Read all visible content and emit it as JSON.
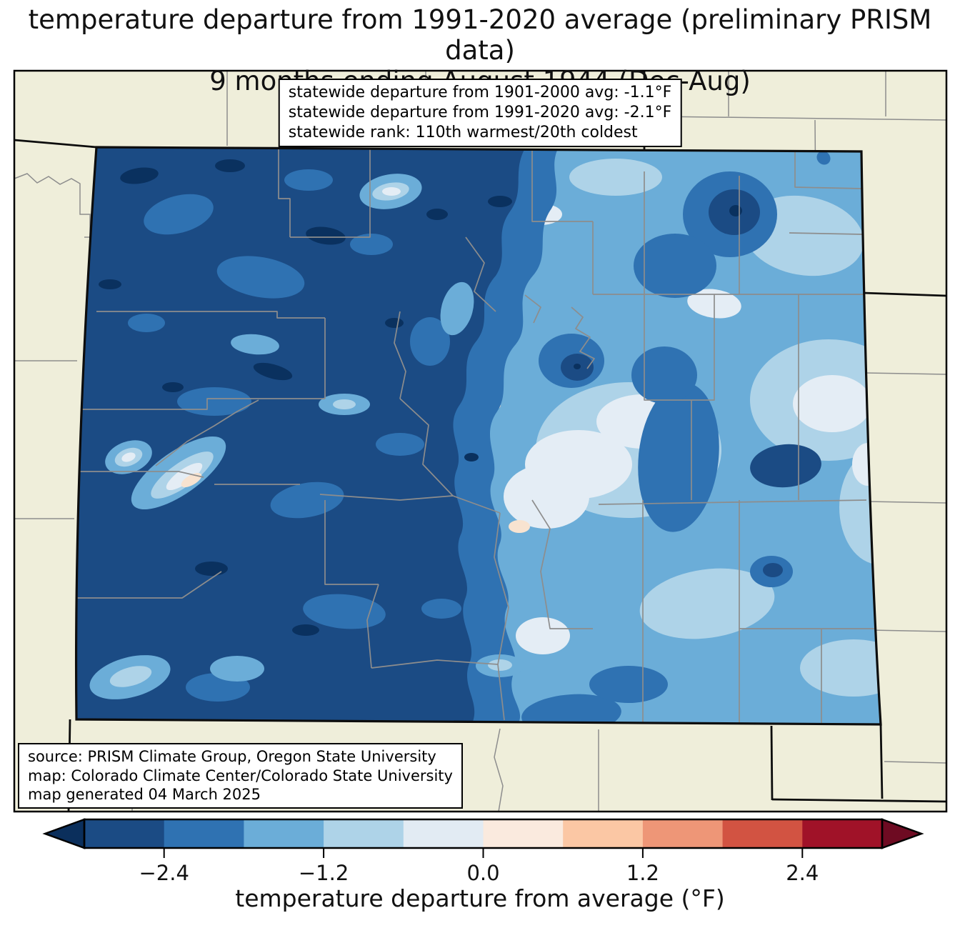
{
  "title": {
    "line1": "temperature departure from 1991-2020 average (preliminary PRISM data)",
    "line2": "9 months ending August 1944 (Dec-Aug)"
  },
  "stats_box": {
    "lines": [
      "statewide departure from 1901-2000 avg: -1.1°F",
      "statewide departure from 1991-2020 avg: -2.1°F",
      "statewide rank: 110th warmest/20th coldest"
    ]
  },
  "source_box": {
    "lines": [
      "source: PRISM Climate Group, Oregon State University",
      "map: Colorado Climate Center/Colorado State University",
      "map generated 04 March 2025"
    ]
  },
  "colorbar": {
    "label": "temperature departure from average (°F)",
    "range": {
      "min": -3.0,
      "max": 3.0
    },
    "ticks": [
      {
        "value": -2.4,
        "label": "−2.4"
      },
      {
        "value": -1.2,
        "label": "−1.2"
      },
      {
        "value": 0.0,
        "label": "0.0"
      },
      {
        "value": 1.2,
        "label": "1.2"
      },
      {
        "value": 2.4,
        "label": "2.4"
      }
    ],
    "segments": [
      "#1b4b84",
      "#2f72b2",
      "#6badd8",
      "#aed3e8",
      "#e2ebf3",
      "#faeade",
      "#fbc7a4",
      "#ee9677",
      "#d25342",
      "#a01228"
    ],
    "under_color": "#0b2f5c",
    "over_color": "#6e0b22"
  },
  "map": {
    "region": "Colorado",
    "palette": {
      "under": "#0a315f",
      "bin1": "#1b4b84",
      "bin2": "#2f72b2",
      "bin3": "#6badd8",
      "bin4": "#aed3e8",
      "bin5": "#e4edf5",
      "bin6": "#f8e3d0",
      "bin7": "#f5d2b6"
    },
    "colors": {
      "background": "#efeeda",
      "state_border": "#0d0d0d",
      "county_line": "#8d8d8d",
      "frame": "#000000"
    }
  }
}
